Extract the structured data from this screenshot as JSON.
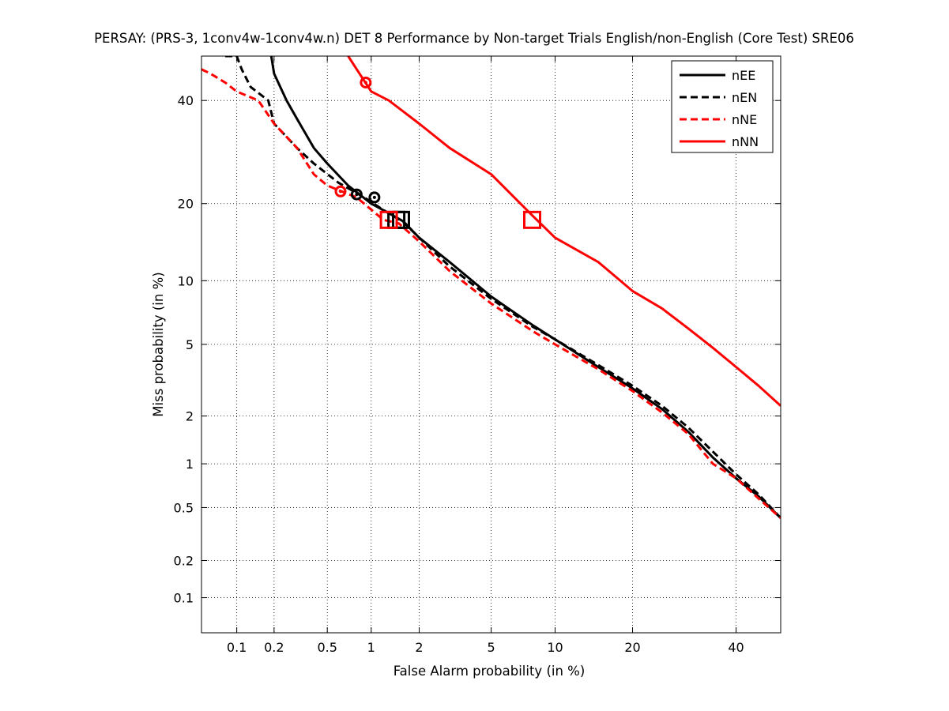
{
  "chart_data": {
    "type": "line",
    "title": "PERSAY: (PRS-3, 1conv4w-1conv4w.n) DET 8 Performance by Non-target Trials English/non-English (Core Test) SRE06",
    "xlabel": "False Alarm probability (in %)",
    "ylabel": "Miss probability (in %)",
    "scale": "normal-deviate (probit) on both axes",
    "xlim": [
      0.05,
      50
    ],
    "ylim": [
      0.05,
      50
    ],
    "x_ticks": [
      0.1,
      0.2,
      0.5,
      1,
      2,
      5,
      10,
      20,
      40
    ],
    "x_tick_labels": [
      "0.1",
      "0.2",
      "0.5",
      "1",
      "2",
      "5",
      "10",
      "20",
      "40"
    ],
    "y_ticks": [
      0.1,
      0.2,
      0.5,
      1,
      2,
      5,
      10,
      20,
      40
    ],
    "y_tick_labels": [
      "0.1",
      "0.2",
      "0.5",
      "1",
      "2",
      "5",
      "10",
      "20",
      "40"
    ],
    "grid": true,
    "legend_position": "top-right",
    "series": [
      {
        "name": "nEE",
        "color": "#000000",
        "dash": "solid",
        "points": [
          [
            0.19,
            50
          ],
          [
            0.2,
            46
          ],
          [
            0.25,
            40
          ],
          [
            0.3,
            36
          ],
          [
            0.4,
            30
          ],
          [
            0.5,
            27
          ],
          [
            0.7,
            23
          ],
          [
            1.0,
            20
          ],
          [
            1.3,
            18.5
          ],
          [
            1.6,
            17.3
          ],
          [
            2.0,
            15
          ],
          [
            3.0,
            12
          ],
          [
            5.0,
            8.5
          ],
          [
            8.0,
            6.2
          ],
          [
            10.0,
            5.3
          ],
          [
            15.0,
            3.8
          ],
          [
            20.0,
            2.9
          ],
          [
            25.0,
            2.2
          ],
          [
            30.0,
            1.6
          ],
          [
            35.0,
            1.1
          ],
          [
            40.0,
            0.8
          ],
          [
            45.0,
            0.6
          ],
          [
            50.0,
            0.42
          ]
        ]
      },
      {
        "name": "nEN",
        "color": "#000000",
        "dash": "dashed",
        "points": [
          [
            0.08,
            50
          ],
          [
            0.1,
            50
          ],
          [
            0.11,
            47
          ],
          [
            0.13,
            43
          ],
          [
            0.18,
            40
          ],
          [
            0.2,
            35
          ],
          [
            0.3,
            30
          ],
          [
            0.4,
            27
          ],
          [
            0.6,
            23.5
          ],
          [
            0.9,
            21
          ],
          [
            1.2,
            19
          ],
          [
            1.6,
            17.2
          ],
          [
            2.0,
            15
          ],
          [
            3.0,
            11.5
          ],
          [
            5.0,
            8.3
          ],
          [
            8.0,
            6.1
          ],
          [
            10.0,
            5.3
          ],
          [
            15.0,
            3.9
          ],
          [
            20.0,
            3.0
          ],
          [
            25.0,
            2.3
          ],
          [
            30.0,
            1.7
          ],
          [
            35.0,
            1.2
          ],
          [
            40.0,
            0.85
          ],
          [
            45.0,
            0.62
          ],
          [
            50.0,
            0.42
          ]
        ]
      },
      {
        "name": "nNE",
        "color": "#ff0000",
        "dash": "dashed",
        "points": [
          [
            0.05,
            47
          ],
          [
            0.06,
            46
          ],
          [
            0.08,
            44
          ],
          [
            0.1,
            42
          ],
          [
            0.15,
            40
          ],
          [
            0.2,
            35
          ],
          [
            0.3,
            30
          ],
          [
            0.4,
            25
          ],
          [
            0.5,
            23
          ],
          [
            0.8,
            21
          ],
          [
            1.2,
            17.5
          ],
          [
            1.5,
            17
          ],
          [
            2.0,
            14.5
          ],
          [
            3.0,
            11
          ],
          [
            5.0,
            7.9
          ],
          [
            8.0,
            5.8
          ],
          [
            10.0,
            5.0
          ],
          [
            15.0,
            3.7
          ],
          [
            20.0,
            2.8
          ],
          [
            25.0,
            2.1
          ],
          [
            30.0,
            1.55
          ],
          [
            35.0,
            1.0
          ],
          [
            40.0,
            0.8
          ],
          [
            45.0,
            0.58
          ],
          [
            50.0,
            0.42
          ]
        ]
      },
      {
        "name": "nNN",
        "color": "#ff0000",
        "dash": "solid",
        "points": [
          [
            0.7,
            50
          ],
          [
            0.8,
            47
          ],
          [
            1.0,
            42
          ],
          [
            1.3,
            40
          ],
          [
            2.0,
            35
          ],
          [
            3.0,
            30
          ],
          [
            5.0,
            25
          ],
          [
            8.0,
            18
          ],
          [
            10.0,
            15
          ],
          [
            15.0,
            12
          ],
          [
            20.0,
            9
          ],
          [
            25.0,
            7.5
          ],
          [
            30.0,
            6
          ],
          [
            35.0,
            4.8
          ],
          [
            40.0,
            3.8
          ],
          [
            45.0,
            3.0
          ],
          [
            50.0,
            2.3
          ]
        ]
      }
    ],
    "markers": [
      {
        "series": "nEE",
        "shape": "circle",
        "x": 1.05,
        "y": 21,
        "color": "#000000"
      },
      {
        "series": "nEN",
        "shape": "circle",
        "x": 0.8,
        "y": 21.5,
        "color": "#000000"
      },
      {
        "series": "nNE",
        "shape": "circle",
        "x": 0.62,
        "y": 22,
        "color": "#ff0000"
      },
      {
        "series": "nNN",
        "shape": "circle",
        "x": 0.92,
        "y": 44,
        "color": "#ff0000"
      },
      {
        "series": "nEE",
        "shape": "square",
        "x": 1.55,
        "y": 17.5,
        "color": "#000000"
      },
      {
        "series": "nEN",
        "shape": "square",
        "x": 1.45,
        "y": 17.5,
        "color": "#000000"
      },
      {
        "series": "nNE",
        "shape": "square",
        "x": 1.3,
        "y": 17.5,
        "color": "#ff0000"
      },
      {
        "series": "nNN",
        "shape": "square",
        "x": 7.9,
        "y": 17.5,
        "color": "#ff0000"
      }
    ]
  }
}
